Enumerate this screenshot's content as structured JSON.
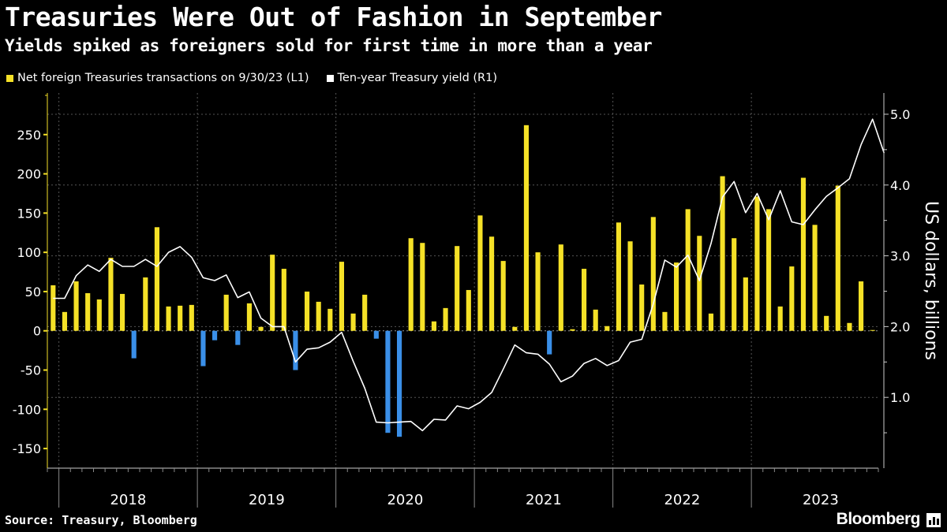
{
  "title": "Treasuries Were Out of Fashion in September",
  "subtitle": "Yields spiked as foreigners sold for first time in more than a year",
  "legend": [
    {
      "label": "Net foreign Treasuries transactions on 9/30/23 (L1)",
      "color": "#f5e127"
    },
    {
      "label": "Ten-year Treasury yield (R1)",
      "color": "#ffffff"
    }
  ],
  "source": "Source: Treasury, Bloomberg",
  "brand": "Bloomberg",
  "colors": {
    "positive_bar": "#f5e127",
    "negative_bar": "#3a8fe8",
    "line": "#ffffff",
    "grid": "#555555",
    "background": "#000000"
  },
  "chart_data": {
    "type": "bar+line",
    "x_labels": [
      "2018",
      "2019",
      "2020",
      "2021",
      "2022",
      "2023"
    ],
    "x_start": "2017-12",
    "x_end": "2023-09",
    "left_axis": {
      "ticks": [
        -150,
        -100,
        -50,
        0,
        50,
        100,
        150,
        200,
        250
      ],
      "ylim": [
        -175,
        303
      ]
    },
    "right_axis": {
      "label": "US dollars, billions",
      "ticks": [
        "1.0",
        "2.0",
        "3.0",
        "4.0",
        "5.0"
      ],
      "tick_values": [
        1,
        2,
        3,
        4,
        5
      ],
      "ylim": [
        0.0,
        5.3
      ]
    },
    "grid": true,
    "series": [
      {
        "name": "Net foreign Treasuries transactions on 9/30/23 (L1)",
        "type": "bar",
        "axis": "left",
        "values": [
          58,
          24,
          63,
          48,
          40,
          93,
          47,
          -35,
          68,
          132,
          31,
          32,
          33,
          -45,
          -12,
          46,
          -18,
          35,
          5,
          97,
          79,
          -50,
          50,
          37,
          28,
          88,
          22,
          46,
          -10,
          -130,
          -135,
          118,
          112,
          12,
          29,
          108,
          52,
          147,
          120,
          89,
          5,
          262,
          100,
          -30,
          110,
          2,
          79,
          27,
          6,
          138,
          114,
          59,
          145,
          24,
          87,
          155,
          121,
          22,
          197,
          118,
          68,
          171,
          155,
          31,
          82,
          195,
          135,
          19,
          185,
          10,
          63,
          1
        ]
      },
      {
        "name": "Ten-year Treasury yield (R1)",
        "type": "line",
        "axis": "right",
        "values": [
          2.4,
          2.4,
          2.72,
          2.87,
          2.78,
          2.95,
          2.85,
          2.85,
          2.95,
          2.85,
          3.05,
          3.13,
          2.98,
          2.69,
          2.65,
          2.73,
          2.41,
          2.49,
          2.12,
          2.0,
          2.0,
          1.5,
          1.68,
          1.7,
          1.78,
          1.92,
          1.51,
          1.13,
          0.65,
          0.64,
          0.65,
          0.66,
          0.53,
          0.69,
          0.68,
          0.88,
          0.84,
          0.93,
          1.07,
          1.4,
          1.74,
          1.63,
          1.61,
          1.47,
          1.22,
          1.3,
          1.48,
          1.55,
          1.45,
          1.52,
          1.78,
          1.82,
          2.32,
          2.94,
          2.84,
          3.01,
          2.65,
          3.17,
          3.83,
          4.05,
          3.61,
          3.88,
          3.51,
          3.92,
          3.48,
          3.44,
          3.65,
          3.84,
          3.96,
          4.09,
          4.57,
          4.93,
          4.45
        ]
      }
    ]
  }
}
